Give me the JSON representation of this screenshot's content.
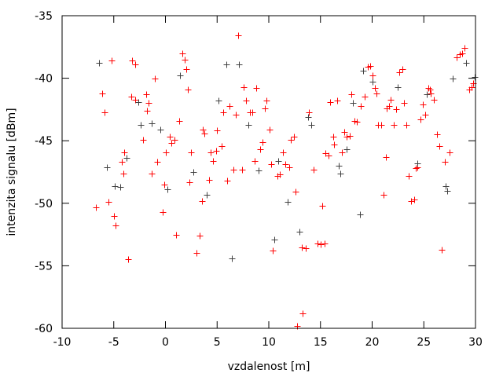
{
  "chart_data": {
    "type": "scatter",
    "title": "",
    "xlabel": "vzdalenost [m]",
    "ylabel": "intenzita signalu [dBm]",
    "xlim": [
      -10,
      30
    ],
    "ylim": [
      -60,
      -35
    ],
    "xticks": [
      "-10",
      "-5",
      "0",
      "5",
      "10",
      "15",
      "20",
      "25",
      "30"
    ],
    "yticks": [
      "-35",
      "-40",
      "-45",
      "-50",
      "-55",
      "-60"
    ],
    "grid": false,
    "legend": "none",
    "marker": "plus",
    "series": [
      {
        "color": "#ff0000",
        "points": [
          [
            -6.7,
            -50.3
          ],
          [
            -6.1,
            -41.2
          ],
          [
            -5.9,
            -42.7
          ],
          [
            -5.5,
            -49.9
          ],
          [
            -5.2,
            -38.6
          ],
          [
            -5.0,
            -51.0
          ],
          [
            -4.8,
            -51.8
          ],
          [
            -4.2,
            -46.7
          ],
          [
            -4.1,
            -47.6
          ],
          [
            -4.0,
            -45.9
          ],
          [
            -3.6,
            -54.5
          ],
          [
            -3.2,
            -38.6
          ],
          [
            -2.9,
            -38.9
          ],
          [
            -3.3,
            -41.5
          ],
          [
            -2.9,
            -41.7
          ],
          [
            -2.2,
            -44.9
          ],
          [
            -1.9,
            -41.3
          ],
          [
            -1.8,
            -42.6
          ],
          [
            -1.6,
            -42.0
          ],
          [
            -1.3,
            -47.6
          ],
          [
            -1.0,
            -40.0
          ],
          [
            -0.8,
            -46.7
          ],
          [
            -0.3,
            -50.7
          ],
          [
            -0.1,
            -48.5
          ],
          [
            0.0,
            -45.9
          ],
          [
            0.4,
            -44.7
          ],
          [
            0.6,
            -45.2
          ],
          [
            0.9,
            -44.9
          ],
          [
            1.0,
            -52.5
          ],
          [
            1.3,
            -43.4
          ],
          [
            1.6,
            -38.0
          ],
          [
            1.9,
            -38.5
          ],
          [
            2.0,
            -39.3
          ],
          [
            2.2,
            -40.9
          ],
          [
            2.3,
            -48.3
          ],
          [
            2.5,
            -45.9
          ],
          [
            3.0,
            -54.0
          ],
          [
            3.3,
            -52.6
          ],
          [
            3.5,
            -49.8
          ],
          [
            3.6,
            -44.1
          ],
          [
            3.8,
            -44.4
          ],
          [
            4.2,
            -48.1
          ],
          [
            4.4,
            -45.9
          ],
          [
            4.6,
            -46.6
          ],
          [
            4.9,
            -45.8
          ],
          [
            5.0,
            -44.2
          ],
          [
            5.4,
            -45.4
          ],
          [
            5.6,
            -42.7
          ],
          [
            6.0,
            -48.2
          ],
          [
            6.2,
            -42.2
          ],
          [
            6.6,
            -47.3
          ],
          [
            6.8,
            -42.9
          ],
          [
            7.0,
            -36.6
          ],
          [
            7.4,
            -47.3
          ],
          [
            7.6,
            -40.7
          ],
          [
            7.8,
            -41.8
          ],
          [
            8.2,
            -42.7
          ],
          [
            8.4,
            -42.7
          ],
          [
            8.6,
            -46.6
          ],
          [
            8.8,
            -40.8
          ],
          [
            9.2,
            -45.7
          ],
          [
            9.4,
            -45.1
          ],
          [
            9.6,
            -42.4
          ],
          [
            9.8,
            -41.8
          ],
          [
            10.1,
            -44.1
          ],
          [
            10.2,
            -46.9
          ],
          [
            10.4,
            -53.8
          ],
          [
            10.8,
            -47.8
          ],
          [
            11.1,
            -47.7
          ],
          [
            11.4,
            -45.9
          ],
          [
            11.6,
            -46.9
          ],
          [
            12.0,
            -47.1
          ],
          [
            12.1,
            -44.9
          ],
          [
            12.4,
            -44.7
          ],
          [
            12.6,
            -49.1
          ],
          [
            12.7,
            -59.8
          ],
          [
            13.3,
            -58.8
          ],
          [
            13.2,
            -53.5
          ],
          [
            13.6,
            -53.6
          ],
          [
            13.9,
            -42.7
          ],
          [
            14.3,
            -47.3
          ],
          [
            14.7,
            -53.2
          ],
          [
            15.0,
            -53.3
          ],
          [
            15.2,
            -50.2
          ],
          [
            15.4,
            -53.2
          ],
          [
            15.5,
            -46.0
          ],
          [
            15.8,
            -46.2
          ],
          [
            15.9,
            -41.9
          ],
          [
            16.2,
            -44.7
          ],
          [
            16.3,
            -45.3
          ],
          [
            16.6,
            -41.8
          ],
          [
            17.1,
            -45.9
          ],
          [
            17.3,
            -44.3
          ],
          [
            17.5,
            -44.7
          ],
          [
            17.8,
            -44.6
          ],
          [
            18.0,
            -41.3
          ],
          [
            18.3,
            -43.4
          ],
          [
            18.5,
            -43.5
          ],
          [
            18.9,
            -42.2
          ],
          [
            19.3,
            -41.5
          ],
          [
            19.6,
            -39.1
          ],
          [
            19.8,
            -39.0
          ],
          [
            20.0,
            -39.8
          ],
          [
            20.3,
            -40.8
          ],
          [
            20.4,
            -41.2
          ],
          [
            20.6,
            -43.7
          ],
          [
            20.9,
            -43.7
          ],
          [
            21.1,
            -49.3
          ],
          [
            21.3,
            -46.3
          ],
          [
            21.4,
            -42.4
          ],
          [
            21.6,
            -42.2
          ],
          [
            21.8,
            -41.7
          ],
          [
            22.1,
            -43.7
          ],
          [
            22.3,
            -42.5
          ],
          [
            22.6,
            -39.5
          ],
          [
            22.9,
            -39.3
          ],
          [
            23.1,
            -42.0
          ],
          [
            23.3,
            -43.7
          ],
          [
            23.5,
            -47.8
          ],
          [
            23.8,
            -49.8
          ],
          [
            24.1,
            -49.7
          ],
          [
            24.2,
            -47.2
          ],
          [
            24.4,
            -47.1
          ],
          [
            24.7,
            -43.3
          ],
          [
            24.9,
            -42.1
          ],
          [
            25.1,
            -42.9
          ],
          [
            25.4,
            -40.8
          ],
          [
            25.6,
            -40.9
          ],
          [
            25.7,
            -41.2
          ],
          [
            26.0,
            -41.7
          ],
          [
            26.3,
            -44.5
          ],
          [
            26.5,
            -45.4
          ],
          [
            26.7,
            -53.7
          ],
          [
            27.0,
            -46.7
          ],
          [
            27.5,
            -45.9
          ],
          [
            28.2,
            -38.3
          ],
          [
            28.5,
            -38.1
          ],
          [
            28.7,
            -38.0
          ],
          [
            28.9,
            -37.6
          ],
          [
            29.4,
            -40.9
          ],
          [
            29.6,
            -40.7
          ],
          [
            29.8,
            -40.4
          ]
        ]
      },
      {
        "color": "#404040",
        "points": [
          [
            -6.4,
            -38.8
          ],
          [
            -5.7,
            -47.1
          ],
          [
            -4.9,
            -48.6
          ],
          [
            -4.4,
            -48.7
          ],
          [
            -3.8,
            -46.4
          ],
          [
            -2.6,
            -41.9
          ],
          [
            -2.4,
            -43.7
          ],
          [
            -1.3,
            -43.6
          ],
          [
            -0.5,
            -44.1
          ],
          [
            0.2,
            -48.9
          ],
          [
            1.4,
            -39.8
          ],
          [
            2.7,
            -47.5
          ],
          [
            4.0,
            -49.3
          ],
          [
            5.1,
            -41.8
          ],
          [
            5.9,
            -38.9
          ],
          [
            6.4,
            -54.4
          ],
          [
            7.1,
            -38.9
          ],
          [
            8.0,
            -43.7
          ],
          [
            9.0,
            -47.4
          ],
          [
            10.5,
            -52.9
          ],
          [
            10.9,
            -46.6
          ],
          [
            11.8,
            -49.9
          ],
          [
            13.0,
            -52.3
          ],
          [
            13.8,
            -43.1
          ],
          [
            14.1,
            -43.7
          ],
          [
            16.8,
            -47.0
          ],
          [
            16.9,
            -47.6
          ],
          [
            17.5,
            -45.7
          ],
          [
            18.1,
            -42.0
          ],
          [
            18.8,
            -50.9
          ],
          [
            19.1,
            -39.4
          ],
          [
            20.0,
            -40.3
          ],
          [
            22.5,
            -40.7
          ],
          [
            24.4,
            -46.8
          ],
          [
            25.3,
            -41.3
          ],
          [
            27.1,
            -48.6
          ],
          [
            27.3,
            -49.0
          ],
          [
            27.8,
            -40.0
          ],
          [
            29.1,
            -38.8
          ],
          [
            29.9,
            -39.9
          ]
        ]
      }
    ]
  }
}
